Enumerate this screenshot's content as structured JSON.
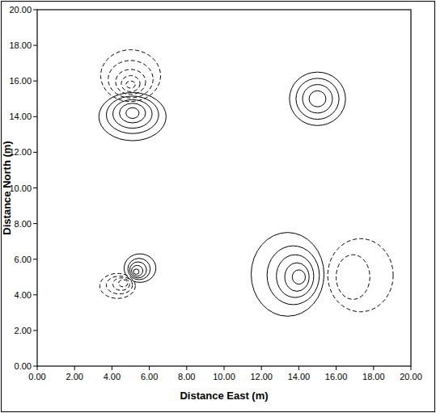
{
  "chart_data": {
    "type": "contour",
    "x_label": "Distance East (m)",
    "y_label": "Distance North (m)",
    "xlim": [
      0,
      20
    ],
    "ylim": [
      0,
      20
    ],
    "xticks": [
      {
        "value": 0,
        "label": "0.00"
      },
      {
        "value": 2,
        "label": "2.00"
      },
      {
        "value": 4,
        "label": "4.00"
      },
      {
        "value": 6,
        "label": "6.00"
      },
      {
        "value": 8,
        "label": "8.00"
      },
      {
        "value": 10,
        "label": "10.00"
      },
      {
        "value": 12,
        "label": "12.00"
      },
      {
        "value": 14,
        "label": "14.00"
      },
      {
        "value": 16,
        "label": "16.00"
      },
      {
        "value": 18,
        "label": "18.00"
      },
      {
        "value": 20,
        "label": "20.00"
      }
    ],
    "yticks": [
      {
        "value": 0,
        "label": "0.00"
      },
      {
        "value": 2,
        "label": "2.00"
      },
      {
        "value": 4,
        "label": "4.00"
      },
      {
        "value": 6,
        "label": "6.00"
      },
      {
        "value": 8,
        "label": "8.00"
      },
      {
        "value": 10,
        "label": "10.00"
      },
      {
        "value": 12,
        "label": "12.00"
      },
      {
        "value": 14,
        "label": "14.00"
      },
      {
        "value": 16,
        "label": "16.00"
      },
      {
        "value": 18,
        "label": "18.00"
      },
      {
        "value": 20,
        "label": "20.00"
      }
    ],
    "color": "#000000",
    "contours": [
      {
        "line_style": "solid",
        "cx": [
          5.1,
          5.1,
          5.1,
          5.1,
          5.1
        ],
        "cy": [
          14.0,
          14.1,
          14.15,
          14.2,
          14.2
        ],
        "rx": [
          1.8,
          1.4,
          1.05,
          0.7,
          0.35
        ],
        "ry": [
          1.35,
          1.05,
          0.8,
          0.55,
          0.3
        ]
      },
      {
        "line_style": "dashed",
        "cx": [
          5.0,
          5.0,
          5.0,
          5.0,
          5.0
        ],
        "cy": [
          16.3,
          16.1,
          15.95,
          15.85,
          15.8
        ],
        "rx": [
          1.6,
          1.2,
          0.8,
          0.5,
          0.25
        ],
        "ry": [
          1.45,
          1.05,
          0.7,
          0.45,
          0.2
        ]
      },
      {
        "line_style": "solid",
        "cx": [
          15.0,
          15.0,
          15.0,
          15.0
        ],
        "cy": [
          15.0,
          15.0,
          15.0,
          15.0
        ],
        "rx": [
          1.5,
          1.15,
          0.8,
          0.45
        ],
        "ry": [
          1.5,
          1.15,
          0.8,
          0.45
        ]
      },
      {
        "line_style": "solid",
        "cx": [
          5.5,
          5.45,
          5.4,
          5.35,
          5.3
        ],
        "cy": [
          5.5,
          5.45,
          5.4,
          5.35,
          5.3
        ],
        "rx": [
          0.85,
          0.6,
          0.45,
          0.3,
          0.15
        ],
        "ry": [
          0.8,
          0.6,
          0.45,
          0.3,
          0.15
        ]
      },
      {
        "line_style": "dashed",
        "cx": [
          4.3,
          4.4,
          4.5,
          4.6
        ],
        "cy": [
          4.5,
          4.55,
          4.6,
          4.65
        ],
        "rx": [
          0.95,
          0.7,
          0.45,
          0.25
        ],
        "ry": [
          0.7,
          0.5,
          0.35,
          0.2
        ]
      },
      {
        "line_style": "solid",
        "cx": [
          13.4,
          13.7,
          13.8,
          13.9,
          14.0
        ],
        "cy": [
          5.15,
          5.1,
          5.05,
          5.0,
          5.0
        ],
        "rx": [
          1.95,
          1.4,
          1.0,
          0.65,
          0.35
        ],
        "ry": [
          2.35,
          1.65,
          1.2,
          0.8,
          0.4
        ]
      },
      {
        "line_style": "dashed",
        "cx": [
          17.3,
          16.9
        ],
        "cy": [
          5.1,
          5.0
        ],
        "rx": [
          1.75,
          0.9
        ],
        "ry": [
          2.05,
          1.25
        ]
      }
    ]
  }
}
